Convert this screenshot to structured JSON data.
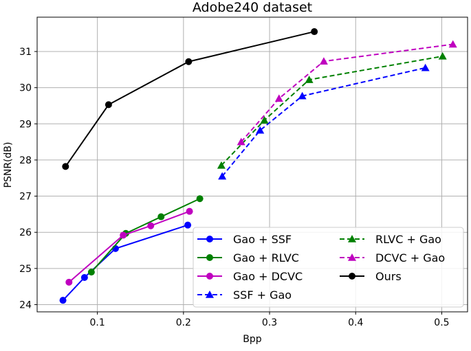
{
  "chart_data": {
    "type": "line",
    "title": "Adobe240 dataset",
    "xlabel": "Bpp",
    "ylabel": "PSNR(dB)",
    "xlim": [
      0.03,
      0.53
    ],
    "ylim": [
      23.8,
      31.95
    ],
    "xticks": [
      0.1,
      0.2,
      0.3,
      0.4,
      0.5
    ],
    "xtick_labels": [
      "0.1",
      "0.2",
      "0.3",
      "0.4",
      "0.5"
    ],
    "yticks": [
      24,
      25,
      26,
      27,
      28,
      29,
      30,
      31
    ],
    "ytick_labels": [
      "24",
      "25",
      "26",
      "27",
      "28",
      "29",
      "30",
      "31"
    ],
    "grid": true,
    "legend_position": "lower-right",
    "series": [
      {
        "name": "Gao + SSF",
        "color": "#0000ff",
        "marker": "circle",
        "dashed": false,
        "x": [
          0.06,
          0.085,
          0.121,
          0.205
        ],
        "y": [
          24.12,
          24.75,
          25.55,
          26.2
        ]
      },
      {
        "name": "Gao + RLVC",
        "color": "#008000",
        "marker": "circle",
        "dashed": false,
        "x": [
          0.093,
          0.133,
          0.174,
          0.219
        ],
        "y": [
          24.9,
          25.97,
          26.43,
          26.93
        ]
      },
      {
        "name": "Gao + DCVC",
        "color": "#bf00bf",
        "marker": "circle",
        "dashed": false,
        "x": [
          0.067,
          0.13,
          0.162,
          0.207
        ],
        "y": [
          24.62,
          25.92,
          26.18,
          26.58
        ]
      },
      {
        "name": "SSF + Gao",
        "color": "#0000ff",
        "marker": "triangle",
        "dashed": true,
        "x": [
          0.245,
          0.289,
          0.338,
          0.481
        ],
        "y": [
          27.55,
          28.82,
          29.77,
          30.55
        ]
      },
      {
        "name": "RLVC + Gao",
        "color": "#008000",
        "marker": "triangle",
        "dashed": true,
        "x": [
          0.244,
          0.294,
          0.346,
          0.501
        ],
        "y": [
          27.85,
          29.1,
          30.22,
          30.87
        ]
      },
      {
        "name": "DCVC + Gao",
        "color": "#bf00bf",
        "marker": "triangle",
        "dashed": true,
        "x": [
          0.267,
          0.311,
          0.363,
          0.513
        ],
        "y": [
          28.5,
          29.7,
          30.73,
          31.2
        ]
      },
      {
        "name": "Ours",
        "color": "#000000",
        "marker": "circle",
        "dashed": false,
        "x": [
          0.063,
          0.113,
          0.206,
          0.352
        ],
        "y": [
          27.82,
          29.53,
          30.72,
          31.55
        ]
      }
    ]
  }
}
